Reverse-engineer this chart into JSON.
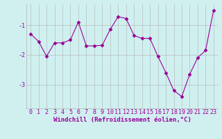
{
  "x": [
    0,
    1,
    2,
    3,
    4,
    5,
    6,
    7,
    8,
    9,
    10,
    11,
    12,
    13,
    14,
    15,
    16,
    17,
    18,
    19,
    20,
    21,
    22,
    23
  ],
  "y": [
    -1.3,
    -1.55,
    -2.05,
    -1.6,
    -1.6,
    -1.5,
    -0.9,
    -1.7,
    -1.7,
    -1.68,
    -1.15,
    -0.72,
    -0.78,
    -1.35,
    -1.45,
    -1.45,
    -2.05,
    -2.6,
    -3.2,
    -3.4,
    -2.65,
    -2.1,
    -1.85,
    -0.5
  ],
  "line_color": "#990099",
  "marker": "D",
  "marker_size": 2.5,
  "background_color": "#d0f0f0",
  "grid_color": "#b0b0b0",
  "xlabel": "Windchill (Refroidissement éolien,°C)",
  "xlabel_fontsize": 6.5,
  "tick_fontsize": 6.0,
  "ytick_labels": [
    "-3",
    "-2",
    "-1"
  ],
  "ytick_vals": [
    -3,
    -2,
    -1
  ],
  "ylim": [
    -3.8,
    -0.3
  ],
  "xlim": [
    -0.5,
    23.5
  ],
  "xticks": [
    0,
    1,
    2,
    3,
    4,
    5,
    6,
    7,
    8,
    9,
    10,
    11,
    12,
    13,
    14,
    15,
    16,
    17,
    18,
    19,
    20,
    21,
    22,
    23
  ]
}
